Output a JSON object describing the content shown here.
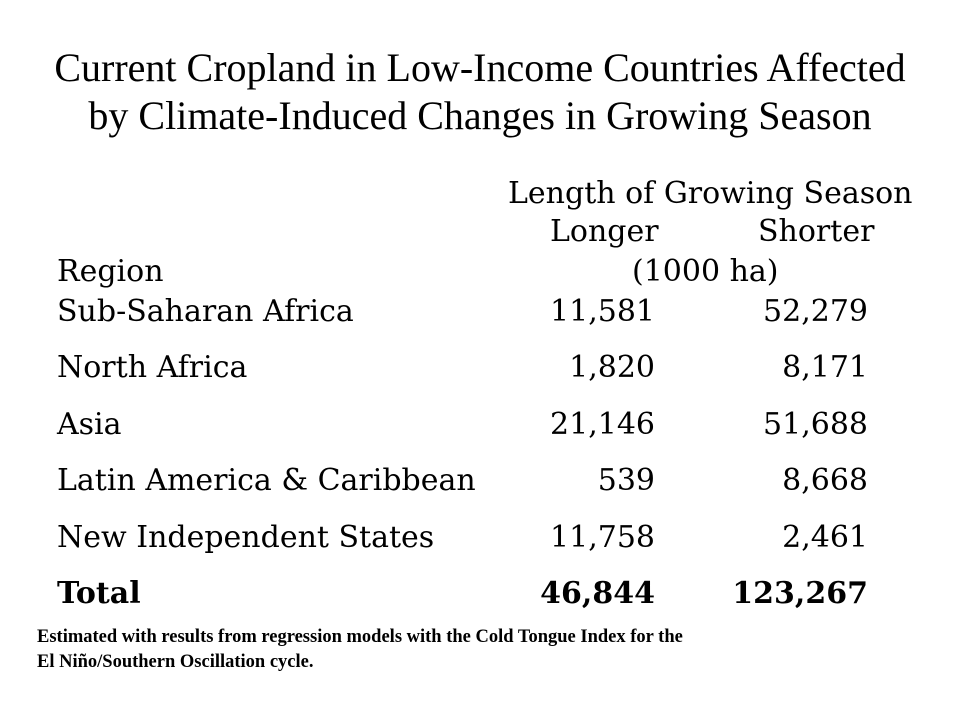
{
  "title": {
    "line1": "Current Cropland in Low-Income Countries Affected",
    "line2": "by Climate-Induced Changes in Growing Season"
  },
  "table": {
    "group_header": "Length of Growing Season",
    "col_longer": "Longer",
    "col_shorter": "Shorter",
    "row_header": "Region",
    "unit": "(1000 ha)",
    "rows": [
      {
        "region": "Sub-Saharan Africa",
        "longer": "11,581",
        "shorter": "52,279"
      },
      {
        "region": "North Africa",
        "longer": "1,820",
        "shorter": "8,171"
      },
      {
        "region": "Asia",
        "longer": "21,146",
        "shorter": "51,688"
      },
      {
        "region": "Latin America & Caribbean",
        "longer": "539",
        "shorter": "8,668"
      },
      {
        "region": "New Independent States",
        "longer": "11,758",
        "shorter": "2,461"
      }
    ],
    "total": {
      "region": "Total",
      "longer": "46,844",
      "shorter": "123,267"
    }
  },
  "note": {
    "line1": "Estimated with results from regression models with the Cold Tongue Index for the",
    "line2": "El Niño/Southern Oscillation cycle."
  }
}
